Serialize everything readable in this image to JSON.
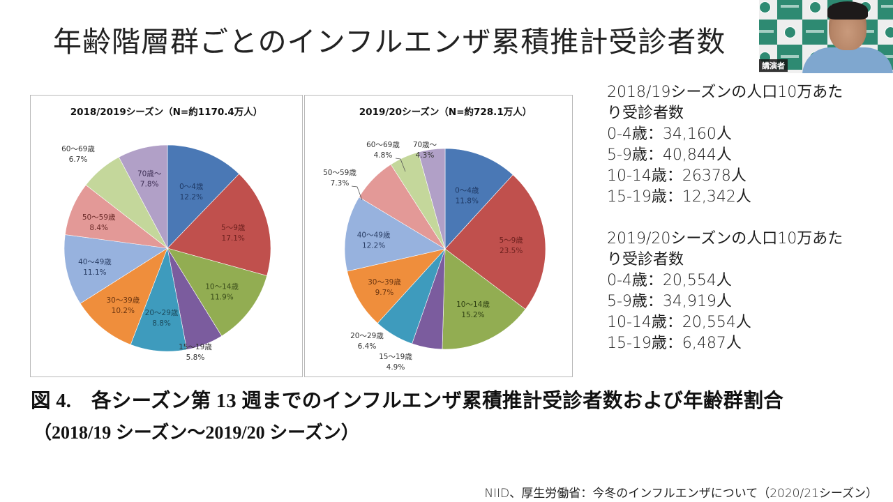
{
  "slide": {
    "title": "年齢階層群ごとのインフルエンザ累積推計受診者数",
    "figure_caption": "図 4.　各シーズン第 13 週までのインフルエンザ累積推計受診者数および年齢群割合",
    "figure_subcaption": "（2018/19 シーズン～2019/20 シーズン）",
    "source_note": "NIID、厚生労働省：今冬のインフルエンザについて（2020/21シーズン）"
  },
  "webcam": {
    "speaker_badge": "講演者",
    "backdrop_colors": [
      "#2e8a72",
      "#eeeeee"
    ]
  },
  "stats": [
    {
      "heading_line1": "2018/19シーズンの人口10万あた",
      "heading_line2": "り受診者数",
      "rows": [
        {
          "label": "0-4歳：34,160人"
        },
        {
          "label": "5-9歳：40,844人"
        },
        {
          "label": "10-14歳：26378人"
        },
        {
          "label": "15-19歳：12,342人"
        }
      ]
    },
    {
      "heading_line1": "2019/20シーズンの人口10万あた",
      "heading_line2": "り受診者数",
      "rows": [
        {
          "label": "0-4歳：20,554人"
        },
        {
          "label": "5-9歳：34,919人"
        },
        {
          "label": "10-14歳：20,554人"
        },
        {
          "label": "15-19歳：6,487人"
        }
      ]
    }
  ],
  "chart_data": [
    {
      "type": "pie",
      "title": "2018/2019シーズン（N=約1170.4万人）",
      "categories": [
        "0～4歳",
        "5～9歳",
        "10～14歳",
        "15～19歳",
        "20～29歳",
        "30～39歳",
        "40～49歳",
        "50～59歳",
        "60～69歳",
        "70歳～"
      ],
      "values": [
        12.2,
        17.1,
        11.9,
        5.8,
        8.8,
        10.2,
        11.1,
        8.4,
        6.7,
        7.8
      ],
      "value_labels": [
        "12.2%",
        "17.1%",
        "11.9%",
        "5.8%",
        "8.8%",
        "10.2%",
        "11.1%",
        "8.4%",
        "6.7%",
        "7.8%"
      ],
      "colors": [
        "#4a78b5",
        "#c0504d",
        "#92ad52",
        "#7b5c9e",
        "#3e9bbd",
        "#ef8e3c",
        "#97b2de",
        "#e39997",
        "#c4d79b",
        "#b1a0c7"
      ],
      "start": "12 o'clock",
      "direction": "clockwise"
    },
    {
      "type": "pie",
      "title": "2019/20シーズン（N=約728.1万人）",
      "categories": [
        "0～4歳",
        "5～9歳",
        "10～14歳",
        "15～19歳",
        "20～29歳",
        "30～39歳",
        "40～49歳",
        "50～59歳",
        "60～69歳",
        "70歳～"
      ],
      "values": [
        11.8,
        23.5,
        15.2,
        4.9,
        6.4,
        9.7,
        12.2,
        7.3,
        4.8,
        4.3
      ],
      "value_labels": [
        "11.8%",
        "23.5%",
        "15.2%",
        "4.9%",
        "6.4%",
        "9.7%",
        "12.2%",
        "7.3%",
        "4.8%",
        "4.3%"
      ],
      "colors": [
        "#4a78b5",
        "#c0504d",
        "#92ad52",
        "#7b5c9e",
        "#3e9bbd",
        "#ef8e3c",
        "#97b2de",
        "#e39997",
        "#c4d79b",
        "#b1a0c7"
      ],
      "start": "12 o'clock",
      "direction": "clockwise"
    }
  ]
}
